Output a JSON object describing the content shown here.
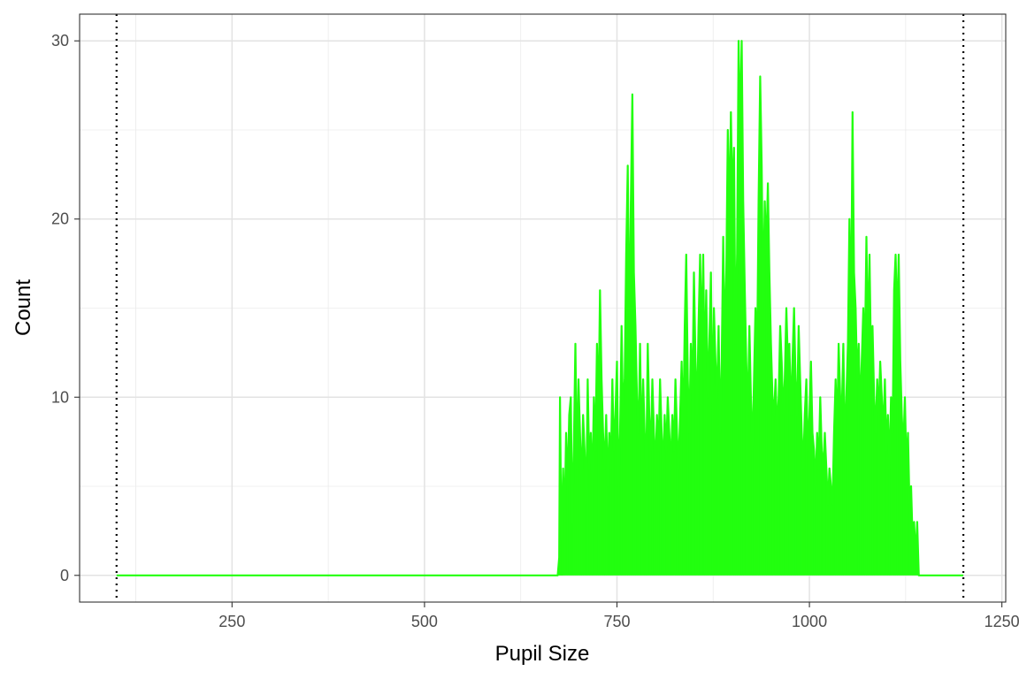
{
  "chart_data": {
    "type": "line",
    "title": "",
    "xlabel": "Pupil Size",
    "ylabel": "Count",
    "xlim": [
      52,
      1255
    ],
    "ylim": [
      -1.5,
      31.5
    ],
    "x_ticks": [
      250,
      500,
      750,
      1000,
      1250
    ],
    "y_ticks": [
      0,
      10,
      20,
      30
    ],
    "grid": true,
    "legend": "none",
    "series_color": "#22ff0f",
    "reference_lines": [
      {
        "x": 100,
        "style": "dotted",
        "color": "#000000"
      },
      {
        "x": 1200,
        "style": "dotted",
        "color": "#000000"
      }
    ],
    "series": [
      {
        "points": [
          [
            100,
            0
          ],
          [
            673,
            0
          ],
          [
            675,
            1
          ],
          [
            676,
            10
          ],
          [
            677,
            5
          ],
          [
            678,
            2
          ],
          [
            679,
            4
          ],
          [
            680,
            6
          ],
          [
            682,
            3
          ],
          [
            684,
            8
          ],
          [
            686,
            5
          ],
          [
            688,
            9
          ],
          [
            690,
            10
          ],
          [
            692,
            3
          ],
          [
            694,
            7
          ],
          [
            696,
            13
          ],
          [
            698,
            6
          ],
          [
            700,
            11
          ],
          [
            702,
            8
          ],
          [
            704,
            5
          ],
          [
            706,
            9
          ],
          [
            708,
            7
          ],
          [
            710,
            4
          ],
          [
            712,
            11
          ],
          [
            714,
            6
          ],
          [
            716,
            8
          ],
          [
            718,
            5
          ],
          [
            720,
            10
          ],
          [
            722,
            7
          ],
          [
            724,
            13
          ],
          [
            726,
            9
          ],
          [
            728,
            16
          ],
          [
            730,
            11
          ],
          [
            732,
            8
          ],
          [
            734,
            6
          ],
          [
            736,
            9
          ],
          [
            738,
            5
          ],
          [
            740,
            8
          ],
          [
            742,
            6
          ],
          [
            744,
            11
          ],
          [
            746,
            7
          ],
          [
            748,
            9
          ],
          [
            750,
            12
          ],
          [
            752,
            5
          ],
          [
            754,
            8
          ],
          [
            756,
            14
          ],
          [
            758,
            9
          ],
          [
            760,
            11
          ],
          [
            762,
            18
          ],
          [
            764,
            23
          ],
          [
            766,
            13
          ],
          [
            768,
            21
          ],
          [
            770,
            27
          ],
          [
            772,
            17
          ],
          [
            774,
            14
          ],
          [
            776,
            10
          ],
          [
            778,
            8
          ],
          [
            780,
            13
          ],
          [
            782,
            7
          ],
          [
            784,
            11
          ],
          [
            786,
            8
          ],
          [
            788,
            6
          ],
          [
            790,
            13
          ],
          [
            792,
            9
          ],
          [
            794,
            7
          ],
          [
            796,
            11
          ],
          [
            798,
            8
          ],
          [
            800,
            6
          ],
          [
            802,
            9
          ],
          [
            804,
            7
          ],
          [
            806,
            11
          ],
          [
            808,
            8
          ],
          [
            810,
            6
          ],
          [
            812,
            9
          ],
          [
            814,
            7
          ],
          [
            816,
            10
          ],
          [
            818,
            8
          ],
          [
            820,
            6
          ],
          [
            822,
            9
          ],
          [
            824,
            7
          ],
          [
            826,
            11
          ],
          [
            828,
            8
          ],
          [
            830,
            6
          ],
          [
            832,
            9
          ],
          [
            834,
            12
          ],
          [
            836,
            8
          ],
          [
            838,
            14
          ],
          [
            840,
            18
          ],
          [
            842,
            11
          ],
          [
            844,
            8
          ],
          [
            846,
            13
          ],
          [
            848,
            10
          ],
          [
            850,
            17
          ],
          [
            852,
            12
          ],
          [
            854,
            9
          ],
          [
            856,
            14
          ],
          [
            858,
            18
          ],
          [
            860,
            13
          ],
          [
            862,
            18
          ],
          [
            864,
            11
          ],
          [
            866,
            16
          ],
          [
            868,
            10
          ],
          [
            870,
            13
          ],
          [
            872,
            17
          ],
          [
            874,
            9
          ],
          [
            876,
            15
          ],
          [
            878,
            12
          ],
          [
            880,
            10
          ],
          [
            882,
            14
          ],
          [
            884,
            8
          ],
          [
            886,
            12
          ],
          [
            888,
            19
          ],
          [
            890,
            13
          ],
          [
            892,
            17
          ],
          [
            894,
            25
          ],
          [
            896,
            20
          ],
          [
            898,
            26
          ],
          [
            900,
            21
          ],
          [
            902,
            24
          ],
          [
            904,
            13
          ],
          [
            906,
            18
          ],
          [
            908,
            30
          ],
          [
            910,
            25
          ],
          [
            912,
            30
          ],
          [
            914,
            21
          ],
          [
            916,
            16
          ],
          [
            918,
            12
          ],
          [
            920,
            9
          ],
          [
            922,
            14
          ],
          [
            924,
            10
          ],
          [
            926,
            7
          ],
          [
            928,
            11
          ],
          [
            930,
            15
          ],
          [
            932,
            12
          ],
          [
            934,
            21
          ],
          [
            936,
            28
          ],
          [
            938,
            23
          ],
          [
            940,
            15
          ],
          [
            942,
            21
          ],
          [
            944,
            18
          ],
          [
            946,
            22
          ],
          [
            948,
            17
          ],
          [
            950,
            13
          ],
          [
            952,
            10
          ],
          [
            954,
            9
          ],
          [
            956,
            11
          ],
          [
            958,
            8
          ],
          [
            960,
            10
          ],
          [
            962,
            14
          ],
          [
            964,
            12
          ],
          [
            966,
            9
          ],
          [
            968,
            11
          ],
          [
            970,
            15
          ],
          [
            972,
            12
          ],
          [
            974,
            13
          ],
          [
            976,
            9
          ],
          [
            978,
            12
          ],
          [
            980,
            15
          ],
          [
            982,
            11
          ],
          [
            984,
            9
          ],
          [
            986,
            14
          ],
          [
            988,
            11
          ],
          [
            990,
            8
          ],
          [
            992,
            6
          ],
          [
            994,
            9
          ],
          [
            996,
            11
          ],
          [
            998,
            7
          ],
          [
            1000,
            9
          ],
          [
            1002,
            12
          ],
          [
            1004,
            8
          ],
          [
            1006,
            7
          ],
          [
            1008,
            5
          ],
          [
            1010,
            8
          ],
          [
            1012,
            6
          ],
          [
            1014,
            10
          ],
          [
            1016,
            7
          ],
          [
            1018,
            6
          ],
          [
            1020,
            8
          ],
          [
            1022,
            6
          ],
          [
            1024,
            4
          ],
          [
            1026,
            6
          ],
          [
            1028,
            5
          ],
          [
            1030,
            4
          ],
          [
            1032,
            8
          ],
          [
            1034,
            11
          ],
          [
            1036,
            8
          ],
          [
            1038,
            13
          ],
          [
            1040,
            10
          ],
          [
            1042,
            9
          ],
          [
            1044,
            13
          ],
          [
            1046,
            7
          ],
          [
            1048,
            10
          ],
          [
            1050,
            13
          ],
          [
            1052,
            20
          ],
          [
            1054,
            14
          ],
          [
            1056,
            26
          ],
          [
            1058,
            17
          ],
          [
            1060,
            15
          ],
          [
            1062,
            11
          ],
          [
            1064,
            13
          ],
          [
            1066,
            9
          ],
          [
            1068,
            12
          ],
          [
            1070,
            15
          ],
          [
            1072,
            12
          ],
          [
            1074,
            19
          ],
          [
            1076,
            13
          ],
          [
            1078,
            18
          ],
          [
            1080,
            12
          ],
          [
            1082,
            14
          ],
          [
            1084,
            10
          ],
          [
            1086,
            8
          ],
          [
            1088,
            11
          ],
          [
            1090,
            9
          ],
          [
            1092,
            12
          ],
          [
            1094,
            10
          ],
          [
            1096,
            8
          ],
          [
            1098,
            11
          ],
          [
            1100,
            7
          ],
          [
            1102,
            9
          ],
          [
            1104,
            6
          ],
          [
            1106,
            10
          ],
          [
            1108,
            8
          ],
          [
            1110,
            16
          ],
          [
            1112,
            18
          ],
          [
            1114,
            14
          ],
          [
            1116,
            18
          ],
          [
            1118,
            12
          ],
          [
            1120,
            9
          ],
          [
            1122,
            7
          ],
          [
            1124,
            10
          ],
          [
            1126,
            6
          ],
          [
            1128,
            8
          ],
          [
            1130,
            4
          ],
          [
            1132,
            5
          ],
          [
            1134,
            2
          ],
          [
            1136,
            3
          ],
          [
            1138,
            1
          ],
          [
            1140,
            3
          ],
          [
            1142,
            0
          ],
          [
            1200,
            0
          ]
        ]
      }
    ]
  }
}
